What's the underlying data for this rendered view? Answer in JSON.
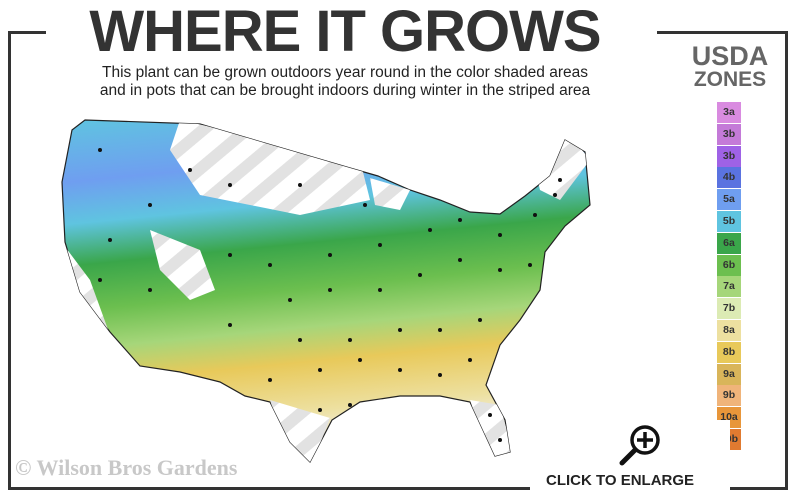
{
  "header": {
    "title": "WHERE IT GROWS",
    "subtitle_line1": "This plant can be grown outdoors year round in the color shaded areas",
    "subtitle_line2": "and in pots that can be brought indoors during winter in the striped area"
  },
  "legend": {
    "title_line1": "USDA",
    "title_line2": "ZONES",
    "zones": [
      {
        "label": "3a",
        "color": "#d98be0"
      },
      {
        "label": "3b",
        "color": "#c47ad8"
      },
      {
        "label": "3b",
        "color": "#9f62e6"
      },
      {
        "label": "4b",
        "color": "#5a73e0"
      },
      {
        "label": "5a",
        "color": "#6f9ef0"
      },
      {
        "label": "5b",
        "color": "#5fc4e0"
      },
      {
        "label": "6a",
        "color": "#3aa64a"
      },
      {
        "label": "6b",
        "color": "#6cbf4f"
      },
      {
        "label": "7a",
        "color": "#a6d67a"
      },
      {
        "label": "7b",
        "color": "#dcebb4"
      },
      {
        "label": "8a",
        "color": "#ede0a0"
      },
      {
        "label": "8b",
        "color": "#e8c95a"
      },
      {
        "label": "9a",
        "color": "#d9b55a"
      },
      {
        "label": "9b",
        "color": "#f0b47a"
      },
      {
        "label": "10a",
        "color": "#e8963a"
      },
      {
        "label": "10b",
        "color": "#e07a30"
      }
    ]
  },
  "footer": {
    "copyright": "© Wilson Bros Gardens",
    "enlarge_label": "CLICK TO ENLARGE",
    "enlarge_icon": "zoom-in-icon"
  }
}
